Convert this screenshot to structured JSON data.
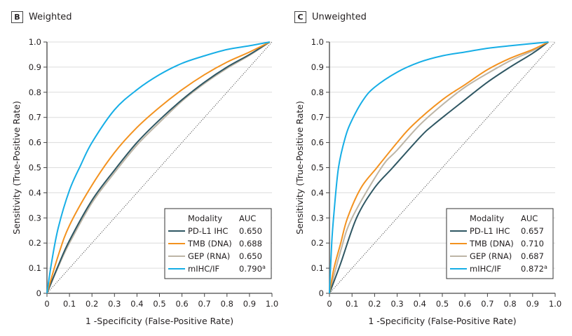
{
  "panels": [
    {
      "letter": "B",
      "title": "Weighted"
    },
    {
      "letter": "C",
      "title": "Unweighted"
    }
  ],
  "chart_data": [
    {
      "type": "line",
      "panel": "B",
      "title": "Weighted",
      "xlabel": "1 -Specificity (False-Positive Rate)",
      "ylabel": "Sensitivity (True-Positive Rate)",
      "xlim": [
        0,
        1.0
      ],
      "ylim": [
        0,
        1.0
      ],
      "xticks": [
        "0",
        "0.1",
        "0.2",
        "0.3",
        "0.4",
        "0.5",
        "0.6",
        "0.7",
        "0.8",
        "0.9",
        "1.0"
      ],
      "yticks": [
        "0",
        "0.1",
        "0.2",
        "0.3",
        "0.4",
        "0.5",
        "0.6",
        "0.7",
        "0.8",
        "0.9",
        "1.0"
      ],
      "grid": "horizontal",
      "legend": {
        "position": "bottom-right",
        "header_modality": "Modality",
        "header_auc": "AUC"
      },
      "reference_line": "diagonal-dotted",
      "series": [
        {
          "name": "PD-L1 IHC",
          "auc": "0.650",
          "color": "#2f5763",
          "x": [
            0,
            0.05,
            0.1,
            0.2,
            0.3,
            0.4,
            0.5,
            0.6,
            0.7,
            0.8,
            0.9,
            0.99
          ],
          "y": [
            0,
            0.11,
            0.21,
            0.37,
            0.49,
            0.6,
            0.69,
            0.77,
            0.84,
            0.9,
            0.95,
            1.0
          ]
        },
        {
          "name": "TMB (DNA)",
          "auc": "0.688",
          "color": "#f3921f",
          "x": [
            0,
            0.05,
            0.1,
            0.2,
            0.3,
            0.4,
            0.5,
            0.6,
            0.7,
            0.8,
            0.9,
            0.99
          ],
          "y": [
            0,
            0.15,
            0.27,
            0.43,
            0.56,
            0.66,
            0.74,
            0.81,
            0.87,
            0.92,
            0.96,
            1.0
          ]
        },
        {
          "name": "GEP (RNA)",
          "auc": "0.650",
          "color": "#bdb5a6",
          "x": [
            0,
            0.05,
            0.1,
            0.2,
            0.3,
            0.4,
            0.5,
            0.6,
            0.7,
            0.8,
            0.9,
            0.99
          ],
          "y": [
            0,
            0.105,
            0.2,
            0.36,
            0.48,
            0.59,
            0.68,
            0.765,
            0.835,
            0.895,
            0.947,
            1.0
          ]
        },
        {
          "name": "mIHC/IF",
          "auc": "0.790",
          "auc_sup": "a",
          "color": "#16aee6",
          "x": [
            0,
            0.02,
            0.05,
            0.1,
            0.15,
            0.2,
            0.3,
            0.4,
            0.5,
            0.6,
            0.7,
            0.8,
            0.9,
            0.99
          ],
          "y": [
            0,
            0.12,
            0.26,
            0.41,
            0.51,
            0.6,
            0.73,
            0.81,
            0.87,
            0.915,
            0.945,
            0.97,
            0.985,
            1.0
          ]
        }
      ]
    },
    {
      "type": "line",
      "panel": "C",
      "title": "Unweighted",
      "xlabel": "1 -Specificity (False-Positive Rate)",
      "ylabel": "Sensitivity (True-Positive Rate)",
      "xlim": [
        0,
        1.0
      ],
      "ylim": [
        0,
        1.0
      ],
      "xticks": [
        "0",
        "0.1",
        "0.2",
        "0.3",
        "0.4",
        "0.5",
        "0.6",
        "0.7",
        "0.8",
        "0.9",
        "1.0"
      ],
      "yticks": [
        "0",
        "0.1",
        "0.2",
        "0.3",
        "0.4",
        "0.5",
        "0.6",
        "0.7",
        "0.8",
        "0.9",
        "1.0"
      ],
      "grid": "horizontal",
      "legend": {
        "position": "bottom-right",
        "header_modality": "Modality",
        "header_auc": "AUC"
      },
      "reference_line": "diagonal-dotted",
      "series": [
        {
          "name": "PD-L1 IHC",
          "auc": "0.657",
          "color": "#2f5763",
          "x": [
            0,
            0.05,
            0.12,
            0.2,
            0.28,
            0.4,
            0.46,
            0.6,
            0.7,
            0.8,
            0.9,
            0.97
          ],
          "y": [
            0,
            0.12,
            0.3,
            0.42,
            0.5,
            0.62,
            0.67,
            0.77,
            0.84,
            0.9,
            0.955,
            1.0
          ]
        },
        {
          "name": "TMB (DNA)",
          "auc": "0.710",
          "color": "#f3921f",
          "x": [
            0,
            0.02,
            0.05,
            0.08,
            0.14,
            0.21,
            0.3,
            0.37,
            0.5,
            0.6,
            0.7,
            0.8,
            0.9,
            0.97
          ],
          "y": [
            0,
            0.1,
            0.2,
            0.3,
            0.42,
            0.5,
            0.6,
            0.67,
            0.77,
            0.83,
            0.89,
            0.935,
            0.97,
            1.0
          ]
        },
        {
          "name": "GEP (RNA)",
          "auc": "0.687",
          "color": "#bdb5a6",
          "x": [
            0,
            0.05,
            0.1,
            0.23,
            0.3,
            0.4,
            0.5,
            0.6,
            0.7,
            0.8,
            0.9,
            0.97
          ],
          "y": [
            0,
            0.17,
            0.3,
            0.5,
            0.57,
            0.67,
            0.75,
            0.82,
            0.875,
            0.925,
            0.965,
            1.0
          ]
        },
        {
          "name": "mIHC/IF",
          "auc": "0.872",
          "auc_sup": "a",
          "color": "#16aee6",
          "x": [
            0,
            0.01,
            0.02,
            0.04,
            0.07,
            0.1,
            0.15,
            0.2,
            0.3,
            0.4,
            0.5,
            0.6,
            0.7,
            0.8,
            0.97
          ],
          "y": [
            0,
            0.2,
            0.32,
            0.5,
            0.62,
            0.69,
            0.77,
            0.82,
            0.88,
            0.92,
            0.945,
            0.96,
            0.975,
            0.985,
            1.0
          ]
        }
      ]
    }
  ]
}
